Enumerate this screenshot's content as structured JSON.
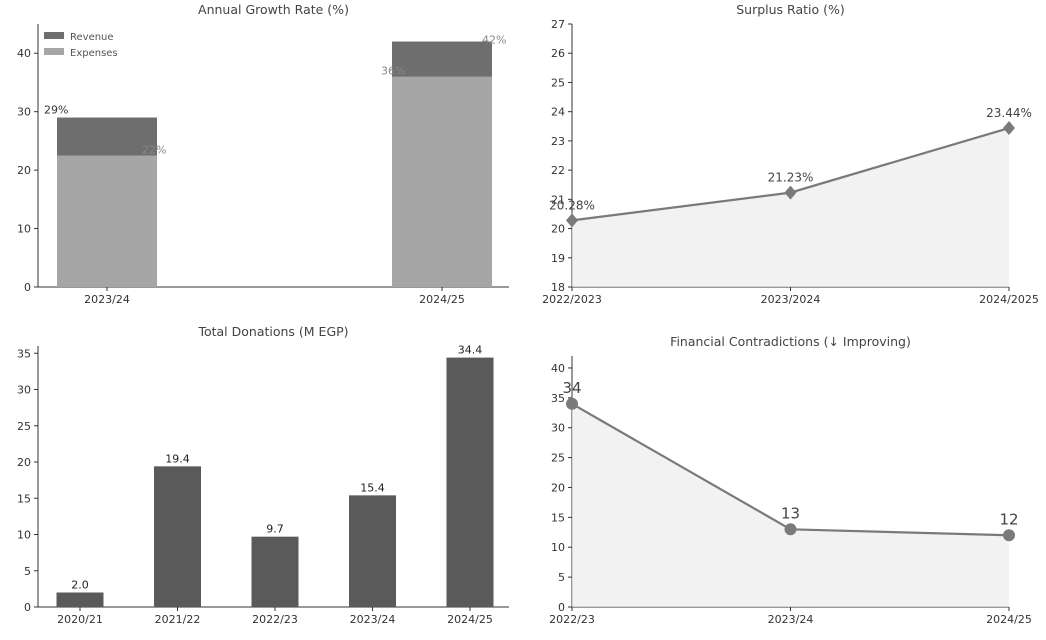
{
  "chart_data": [
    {
      "type": "bar",
      "title": "Annual Growth Rate (%)",
      "categories": [
        "2023/24",
        "2024/25"
      ],
      "series": [
        {
          "name": "Revenue",
          "values": [
            29,
            42
          ],
          "labels": [
            "29%",
            "42%"
          ]
        },
        {
          "name": "Expenses",
          "values": [
            22.5,
            36
          ],
          "labels": [
            "22%",
            "36%"
          ]
        }
      ],
      "ylim": [
        0,
        45
      ],
      "yticks": [
        0,
        10,
        20,
        30,
        40
      ],
      "legend": "top-left",
      "colors": {
        "Revenue": "#6e6e6e",
        "Expenses": "#a6a6a6"
      }
    },
    {
      "type": "area",
      "title": "Surplus Ratio (%)",
      "x": [
        "2022/2023",
        "2023/2024",
        "2024/2025"
      ],
      "values": [
        20.28,
        21.23,
        23.44
      ],
      "labels": [
        "20.28%",
        "21.23%",
        "23.44%"
      ],
      "ylim": [
        18,
        27
      ],
      "yticks": [
        18,
        19,
        20,
        21,
        22,
        23,
        24,
        25,
        26,
        27
      ],
      "marker": "diamond",
      "color": "#7a7a7a"
    },
    {
      "type": "bar",
      "title": "Total Donations (M EGP)",
      "categories": [
        "2020/21",
        "2021/22",
        "2022/23",
        "2023/24",
        "2024/25"
      ],
      "values": [
        2.0,
        19.4,
        9.7,
        15.4,
        34.4
      ],
      "labels": [
        "2.0",
        "19.4",
        "9.7",
        "15.4",
        "34.4"
      ],
      "ylim": [
        0,
        36
      ],
      "yticks": [
        0,
        5,
        10,
        15,
        20,
        25,
        30,
        35
      ],
      "color": "#5a5a5a"
    },
    {
      "type": "area",
      "title": "Financial Contradictions (↓ Improving)",
      "x": [
        "2022/23",
        "2023/24",
        "2024/25"
      ],
      "values": [
        34,
        13,
        12
      ],
      "labels": [
        "34",
        "13",
        "12"
      ],
      "ylim": [
        0,
        42
      ],
      "yticks": [
        0,
        5,
        10,
        15,
        20,
        25,
        30,
        35,
        40
      ],
      "marker": "circle",
      "color": "#7a7a7a"
    }
  ]
}
